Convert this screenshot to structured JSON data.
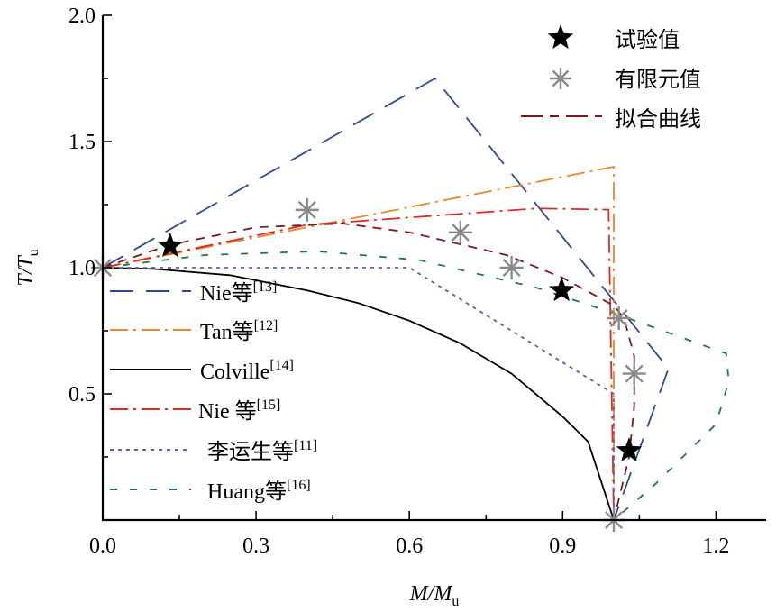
{
  "chart_data": {
    "type": "line",
    "title": "",
    "xlabel": "M/Mu",
    "xlabel_main": "M/M",
    "xlabel_sub": "u",
    "ylabel": "T/Tu",
    "ylabel_main": "T/T",
    "ylabel_sub": "u",
    "xlim": [
      0,
      1.3
    ],
    "ylim": [
      0,
      2.0
    ],
    "xticks": [
      0.0,
      0.3,
      0.6,
      0.9,
      1.2
    ],
    "xtick_labels": [
      "0.0",
      "0.3",
      "0.6",
      "0.9",
      "1.2"
    ],
    "yticks": [
      0.5,
      1.0,
      1.5,
      2.0
    ],
    "ytick_labels": [
      "0.5",
      "1.0",
      "1.5",
      "2.0"
    ],
    "grid": false,
    "series": [
      {
        "name": "Nie等",
        "ref": "[13]",
        "color": "#2e4a94",
        "style": "long-dash",
        "x": [
          0,
          0.65,
          1.107,
          1.0
        ],
        "y": [
          1.0,
          1.75,
          0.6,
          0.0
        ]
      },
      {
        "name": "Tan等",
        "ref": "[12]",
        "color": "#e8892c",
        "style": "dash-dot",
        "x": [
          0,
          1.0,
          1.0
        ],
        "y": [
          1.0,
          1.4,
          0.0
        ]
      },
      {
        "name": "Colville",
        "ref": "[14]",
        "color": "#000000",
        "style": "solid",
        "x": [
          0,
          0.1,
          0.25,
          0.4,
          0.5,
          0.6,
          0.7,
          0.8,
          0.9,
          0.95,
          1.0
        ],
        "y": [
          1.0,
          0.995,
          0.97,
          0.91,
          0.86,
          0.79,
          0.7,
          0.58,
          0.41,
          0.31,
          0.0
        ]
      },
      {
        "name": "Nie 等",
        "ref": "[15]",
        "color": "#e02a2a",
        "style": "dash-dot",
        "x": [
          0,
          0.4,
          0.85,
          0.99,
          1.0
        ],
        "y": [
          1.0,
          1.17,
          1.235,
          1.23,
          0.0
        ]
      },
      {
        "name": "李运生等",
        "ref": "[11]",
        "color": "#6a5aa8",
        "style": "dotted",
        "x": [
          0,
          0.6,
          1.0,
          1.0
        ],
        "y": [
          1.0,
          1.0,
          0.5,
          0.0
        ]
      },
      {
        "name": "Huang等",
        "ref": "[16]",
        "color": "#1f7a3c",
        "style": "dashed",
        "x": [
          0,
          0.2,
          0.42,
          0.62,
          0.85,
          1.0,
          1.22,
          1.225,
          1.2,
          1.08,
          1.0
        ],
        "y": [
          1.0,
          1.05,
          1.065,
          1.03,
          0.92,
          0.82,
          0.66,
          0.55,
          0.38,
          0.14,
          0.0
        ]
      },
      {
        "name": "拟合曲线",
        "ref": "",
        "color": "#7a1a1a",
        "style": "short-dash",
        "x": [
          0,
          0.13,
          0.3,
          0.47,
          0.6,
          0.79,
          0.9,
          1.0,
          1.02,
          1.04,
          1.04,
          1.03,
          1.0
        ],
        "y": [
          1.0,
          1.09,
          1.16,
          1.175,
          1.14,
          1.05,
          0.96,
          0.85,
          0.8,
          0.65,
          0.45,
          0.25,
          0.0
        ]
      }
    ],
    "markers": [
      {
        "name": "试验值",
        "symbol": "star",
        "color": "#000000",
        "x": [
          0.132,
          0.898,
          1.03
        ],
        "y": [
          1.086,
          0.91,
          0.275
        ]
      },
      {
        "name": "有限元值",
        "symbol": "asterisk",
        "color": "#8a8a8a",
        "x": [
          0.0,
          0.4,
          0.7,
          0.8,
          1.01,
          1.04,
          1.0
        ],
        "y": [
          1.0,
          1.229,
          1.14,
          1.0,
          0.8,
          0.58,
          0.0
        ]
      }
    ],
    "legends": {
      "top_right": [
        "试验值",
        "有限元值",
        "拟合曲线"
      ],
      "left": [
        {
          "label": "Nie等",
          "sup": "[13]"
        },
        {
          "label": "Tan等",
          "sup": "[12]"
        },
        {
          "label": "Colville",
          "sup": "[14]"
        },
        {
          "label": "Nie 等",
          "sup": "[15]"
        },
        {
          "label": "李运生等",
          "sup": "[11]"
        },
        {
          "label": "Huang等",
          "sup": "[16]"
        }
      ]
    }
  }
}
